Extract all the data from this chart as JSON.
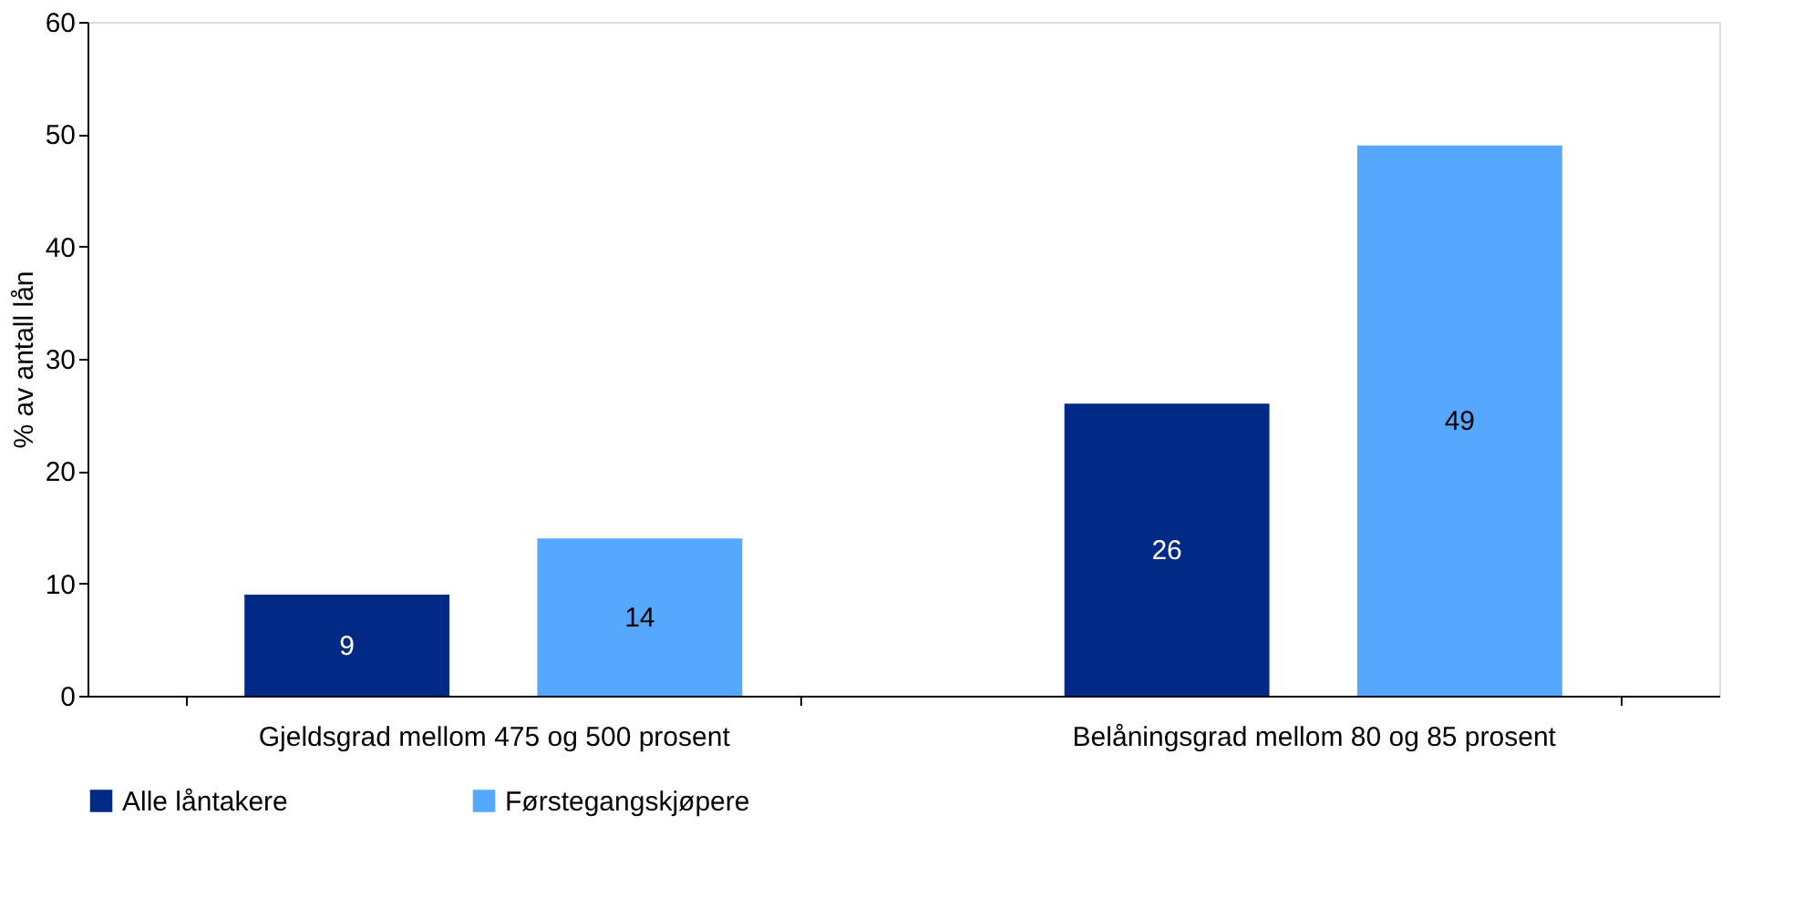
{
  "chart_data": {
    "type": "bar",
    "ylabel": "% av antall lån",
    "categories": [
      "Gjeldsgrad mellom 475 og 500 prosent",
      "Belåningsgrad mellom 80 og 85 prosent"
    ],
    "series": [
      {
        "name": "Alle låntakere",
        "color": "#002a85",
        "values": [
          9,
          26
        ]
      },
      {
        "name": "Førstegangskjøpere",
        "color": "#56a8ff",
        "values": [
          14,
          49
        ]
      }
    ],
    "ylim": [
      0,
      60
    ],
    "yticks": [
      0,
      10,
      20,
      30,
      40,
      50,
      60
    ],
    "grid": false,
    "legend": "bottom left",
    "data_labels": true
  }
}
